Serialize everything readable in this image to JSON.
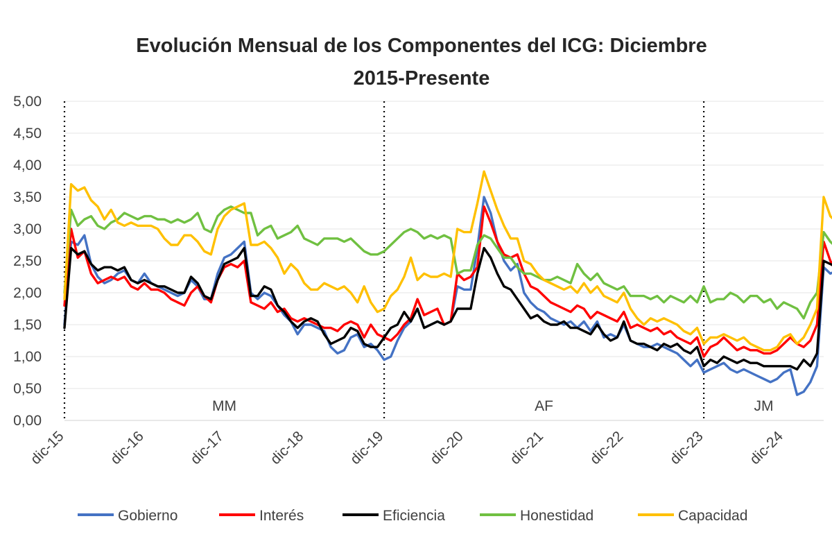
{
  "chart_data": {
    "type": "line",
    "title": [
      "Evolución Mensual de los Componentes del ICG: Diciembre",
      "2015-Presente"
    ],
    "xlabel": "",
    "ylabel": "",
    "ylim": [
      0,
      5
    ],
    "y_ticks": [
      "0,00",
      "0,50",
      "1,00",
      "1,50",
      "2,00",
      "2,50",
      "3,00",
      "3,50",
      "4,00",
      "4,50",
      "5,00"
    ],
    "x_ticks": [
      "dic-15",
      "dic-16",
      "dic-17",
      "dic-18",
      "dic-19",
      "dic-20",
      "dic-21",
      "dic-22",
      "dic-23",
      "dic-24"
    ],
    "x_start": "dic-15",
    "months": 115,
    "grid": true,
    "legend_position": "bottom",
    "periods": [
      {
        "label": "MM",
        "start_month": 0,
        "end_month": 48
      },
      {
        "label": "AF",
        "start_month": 48,
        "end_month": 96
      },
      {
        "label": "JM",
        "start_month": 96,
        "end_month": 115
      }
    ],
    "series": [
      {
        "name": "Gobierno",
        "color": "#4472C4",
        "values": [
          1.5,
          2.8,
          2.75,
          2.9,
          2.45,
          2.25,
          2.15,
          2.2,
          2.3,
          2.35,
          2.2,
          2.15,
          2.3,
          2.15,
          2.1,
          2.05,
          2.0,
          1.95,
          2.0,
          2.2,
          2.1,
          1.9,
          1.9,
          2.3,
          2.55,
          2.6,
          2.7,
          2.8,
          2.0,
          1.9,
          2.0,
          1.95,
          1.8,
          1.65,
          1.55,
          1.35,
          1.5,
          1.5,
          1.45,
          1.4,
          1.15,
          1.05,
          1.1,
          1.3,
          1.35,
          1.15,
          1.2,
          1.1,
          0.95,
          1.0,
          1.25,
          1.45,
          1.55,
          1.75,
          1.45,
          1.5,
          1.55,
          1.5,
          1.55,
          2.1,
          2.05,
          2.05,
          2.7,
          3.5,
          3.25,
          2.8,
          2.5,
          2.35,
          2.45,
          2.0,
          1.85,
          1.75,
          1.7,
          1.6,
          1.55,
          1.5,
          1.55,
          1.45,
          1.55,
          1.4,
          1.55,
          1.3,
          1.35,
          1.3,
          1.5,
          1.25,
          1.2,
          1.15,
          1.15,
          1.2,
          1.15,
          1.1,
          1.05,
          0.95,
          0.85,
          0.95,
          0.75,
          0.8,
          0.85,
          0.9,
          0.8,
          0.75,
          0.8,
          0.75,
          0.7,
          0.65,
          0.6,
          0.65,
          0.75,
          0.8,
          0.4,
          0.45,
          0.6,
          0.85,
          2.4,
          2.3,
          2.35
        ]
      },
      {
        "name": "Interés",
        "color": "#FF0000",
        "values": [
          1.8,
          3.0,
          2.55,
          2.65,
          2.3,
          2.15,
          2.2,
          2.25,
          2.2,
          2.25,
          2.1,
          2.05,
          2.15,
          2.05,
          2.05,
          2.0,
          1.9,
          1.85,
          1.8,
          2.0,
          2.1,
          1.95,
          1.85,
          2.2,
          2.4,
          2.45,
          2.4,
          2.5,
          1.85,
          1.8,
          1.75,
          1.85,
          1.7,
          1.75,
          1.6,
          1.55,
          1.6,
          1.55,
          1.5,
          1.45,
          1.45,
          1.4,
          1.5,
          1.55,
          1.5,
          1.3,
          1.5,
          1.35,
          1.3,
          1.25,
          1.35,
          1.5,
          1.6,
          1.9,
          1.65,
          1.7,
          1.75,
          1.5,
          1.55,
          2.3,
          2.2,
          2.25,
          2.4,
          3.35,
          3.1,
          2.8,
          2.6,
          2.55,
          2.6,
          2.3,
          2.1,
          2.05,
          1.95,
          1.85,
          1.8,
          1.75,
          1.7,
          1.8,
          1.75,
          1.6,
          1.7,
          1.65,
          1.6,
          1.55,
          1.7,
          1.45,
          1.5,
          1.45,
          1.4,
          1.45,
          1.35,
          1.4,
          1.3,
          1.25,
          1.2,
          1.3,
          1.0,
          1.15,
          1.2,
          1.3,
          1.2,
          1.1,
          1.15,
          1.1,
          1.1,
          1.05,
          1.05,
          1.1,
          1.2,
          1.3,
          1.2,
          1.15,
          1.25,
          1.5,
          2.8,
          2.5,
          2.3
        ]
      },
      {
        "name": "Eficiencia",
        "color": "#000000",
        "values": [
          1.45,
          2.7,
          2.6,
          2.65,
          2.45,
          2.35,
          2.4,
          2.4,
          2.35,
          2.4,
          2.2,
          2.15,
          2.2,
          2.15,
          2.1,
          2.1,
          2.05,
          2.0,
          2.0,
          2.25,
          2.15,
          1.95,
          1.9,
          2.2,
          2.45,
          2.5,
          2.55,
          2.7,
          1.95,
          1.95,
          2.1,
          2.05,
          1.8,
          1.7,
          1.55,
          1.45,
          1.55,
          1.6,
          1.55,
          1.35,
          1.2,
          1.25,
          1.3,
          1.45,
          1.4,
          1.2,
          1.15,
          1.15,
          1.3,
          1.45,
          1.5,
          1.7,
          1.55,
          1.75,
          1.45,
          1.5,
          1.55,
          1.5,
          1.55,
          1.75,
          1.75,
          1.75,
          2.3,
          2.7,
          2.55,
          2.3,
          2.1,
          2.05,
          1.9,
          1.75,
          1.6,
          1.65,
          1.55,
          1.5,
          1.5,
          1.55,
          1.45,
          1.45,
          1.4,
          1.35,
          1.5,
          1.35,
          1.25,
          1.3,
          1.55,
          1.25,
          1.2,
          1.2,
          1.15,
          1.1,
          1.2,
          1.15,
          1.2,
          1.1,
          1.05,
          1.15,
          0.85,
          0.95,
          0.9,
          1.0,
          0.95,
          0.9,
          0.95,
          0.9,
          0.9,
          0.85,
          0.85,
          0.85,
          0.85,
          0.85,
          0.8,
          0.95,
          0.85,
          1.05,
          2.5,
          2.45,
          2.4
        ]
      },
      {
        "name": "Honestidad",
        "color": "#70C041",
        "values": [
          2.0,
          3.3,
          3.05,
          3.15,
          3.2,
          3.05,
          3.0,
          3.1,
          3.15,
          3.25,
          3.2,
          3.15,
          3.2,
          3.2,
          3.15,
          3.15,
          3.1,
          3.15,
          3.1,
          3.15,
          3.25,
          3.0,
          2.95,
          3.2,
          3.3,
          3.35,
          3.3,
          3.25,
          3.25,
          2.9,
          3.0,
          3.05,
          2.85,
          2.9,
          2.95,
          3.05,
          2.85,
          2.8,
          2.75,
          2.85,
          2.85,
          2.85,
          2.8,
          2.85,
          2.75,
          2.65,
          2.6,
          2.6,
          2.65,
          2.75,
          2.85,
          2.95,
          3.0,
          2.95,
          2.85,
          2.9,
          2.85,
          2.9,
          2.85,
          2.3,
          2.35,
          2.35,
          2.75,
          2.9,
          2.85,
          2.7,
          2.55,
          2.55,
          2.4,
          2.3,
          2.3,
          2.25,
          2.2,
          2.2,
          2.25,
          2.2,
          2.15,
          2.45,
          2.3,
          2.2,
          2.3,
          2.15,
          2.1,
          2.05,
          2.1,
          1.95,
          1.95,
          1.95,
          1.9,
          1.95,
          1.85,
          1.95,
          1.9,
          1.85,
          1.95,
          1.85,
          2.1,
          1.85,
          1.9,
          1.9,
          2.0,
          1.95,
          1.85,
          1.95,
          1.95,
          1.85,
          1.9,
          1.75,
          1.85,
          1.8,
          1.75,
          1.6,
          1.85,
          2.0,
          2.95,
          2.8,
          2.7
        ]
      },
      {
        "name": "Capacidad",
        "color": "#FFC000",
        "values": [
          1.9,
          3.7,
          3.6,
          3.65,
          3.45,
          3.35,
          3.15,
          3.3,
          3.1,
          3.05,
          3.1,
          3.05,
          3.05,
          3.05,
          3.0,
          2.85,
          2.75,
          2.75,
          2.9,
          2.9,
          2.8,
          2.65,
          2.6,
          3.0,
          3.2,
          3.3,
          3.35,
          3.4,
          2.75,
          2.75,
          2.8,
          2.7,
          2.55,
          2.3,
          2.45,
          2.35,
          2.15,
          2.05,
          2.05,
          2.15,
          2.1,
          2.05,
          2.1,
          2.0,
          1.85,
          2.1,
          1.85,
          1.7,
          1.75,
          1.95,
          2.05,
          2.25,
          2.55,
          2.2,
          2.3,
          2.25,
          2.25,
          2.3,
          2.25,
          3.0,
          2.95,
          2.95,
          3.4,
          3.9,
          3.6,
          3.3,
          3.05,
          2.85,
          2.85,
          2.5,
          2.45,
          2.3,
          2.2,
          2.15,
          2.1,
          2.05,
          2.1,
          2.0,
          2.15,
          2.0,
          2.1,
          1.95,
          1.9,
          1.85,
          2.0,
          1.75,
          1.6,
          1.5,
          1.6,
          1.55,
          1.6,
          1.55,
          1.5,
          1.4,
          1.35,
          1.45,
          1.2,
          1.3,
          1.3,
          1.35,
          1.3,
          1.25,
          1.3,
          1.2,
          1.15,
          1.1,
          1.1,
          1.15,
          1.3,
          1.35,
          1.2,
          1.3,
          1.5,
          1.75,
          3.5,
          3.2,
          3.1
        ]
      }
    ]
  }
}
